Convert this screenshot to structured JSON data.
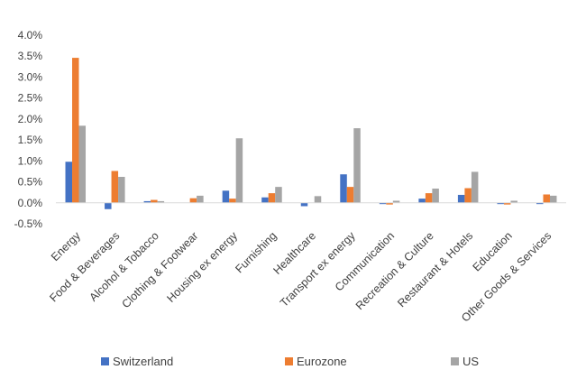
{
  "chart_data": {
    "type": "bar",
    "title": "",
    "xlabel": "",
    "ylabel": "",
    "ylim": [
      -0.005,
      0.04
    ],
    "yticks": [
      -0.005,
      0.0,
      0.005,
      0.01,
      0.015,
      0.02,
      0.025,
      0.03,
      0.035,
      0.04
    ],
    "ytick_labels": [
      "-0.5%",
      "0.0%",
      "0.5%",
      "1.0%",
      "1.5%",
      "2.0%",
      "2.5%",
      "3.0%",
      "3.5%",
      "4.0%"
    ],
    "grid": false,
    "legend_position": "bottom",
    "categories": [
      "Energy",
      "Food & Beverages",
      "Alcohol & Tobacco",
      "Clothing & Footwear",
      "Housing ex energy",
      "Furnishing",
      "Healthcare",
      "Transport ex energy",
      "Communication",
      "Recreation & Culture",
      "Restaurant & Hotels",
      "Education",
      "Other Goods & Services"
    ],
    "series": [
      {
        "name": "Switzerland",
        "color": "#4472c4",
        "values": [
          0.0098,
          -0.0015,
          0.0004,
          0.0,
          0.0029,
          0.0013,
          -0.0008,
          0.0068,
          -0.0003,
          0.001,
          0.0019,
          -0.0003,
          -0.0003
        ]
      },
      {
        "name": "Eurozone",
        "color": "#ed7d31",
        "values": [
          0.0346,
          0.0076,
          0.0007,
          0.0011,
          0.001,
          0.0023,
          0.0,
          0.0038,
          -0.0004,
          0.0023,
          0.0035,
          -0.0004,
          0.002
        ]
      },
      {
        "name": "US",
        "color": "#a5a5a5",
        "values": [
          0.0184,
          0.0062,
          0.0004,
          0.0017,
          0.0154,
          0.0038,
          0.0016,
          0.0178,
          0.0005,
          0.0034,
          0.0074,
          0.0005,
          0.0017
        ]
      }
    ]
  }
}
